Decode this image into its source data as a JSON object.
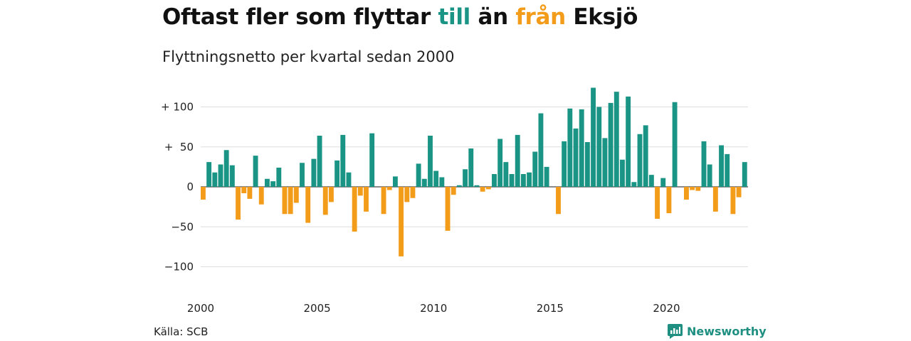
{
  "title": {
    "part1": "Oftast fler som flyttar ",
    "highlight1": "till",
    "part2": " än ",
    "highlight2": "från",
    "part3": " Eksjö"
  },
  "subtitle": "Flyttningsnetto per kvartal sedan 2000",
  "source": "Källa: SCB",
  "brand": {
    "name": "Newsworthy",
    "icon": "newsworthy-logo-icon"
  },
  "colors": {
    "positive": "#1a9485",
    "negative": "#f39c1a",
    "grid": "#dedede",
    "text": "#111111"
  },
  "chart_data": {
    "type": "bar",
    "x_start": 2000,
    "quarters_per_year": 4,
    "x_ticks": [
      2000,
      2005,
      2010,
      2015,
      2020
    ],
    "y_ticks": [
      {
        "value": 100,
        "label": "+ 100"
      },
      {
        "value": 50,
        "label": "+  50"
      },
      {
        "value": 0,
        "label": "0"
      },
      {
        "value": -50,
        "label": "−50"
      },
      {
        "value": -100,
        "label": "−100"
      }
    ],
    "ylim": [
      -115,
      125
    ],
    "grid": true,
    "values": [
      -16,
      31,
      18,
      28,
      46,
      27,
      -41,
      -8,
      -15,
      39,
      -22,
      10,
      7,
      24,
      -34,
      -34,
      -20,
      30,
      -45,
      35,
      64,
      -35,
      -19,
      33,
      65,
      18,
      -56,
      -11,
      -31,
      67,
      0,
      -34,
      -4,
      13,
      -87,
      -19,
      -14,
      29,
      10,
      64,
      20,
      12,
      -55,
      -10,
      2,
      22,
      48,
      2,
      -6,
      -3,
      16,
      60,
      31,
      16,
      65,
      16,
      18,
      44,
      92,
      25,
      0,
      -34,
      57,
      98,
      73,
      97,
      56,
      124,
      100,
      61,
      105,
      119,
      34,
      113,
      6,
      66,
      77,
      15,
      -40,
      11,
      -33,
      106,
      0,
      -16,
      -4,
      -5,
      57,
      28,
      -31,
      52,
      41,
      -34,
      -13,
      31
    ]
  }
}
